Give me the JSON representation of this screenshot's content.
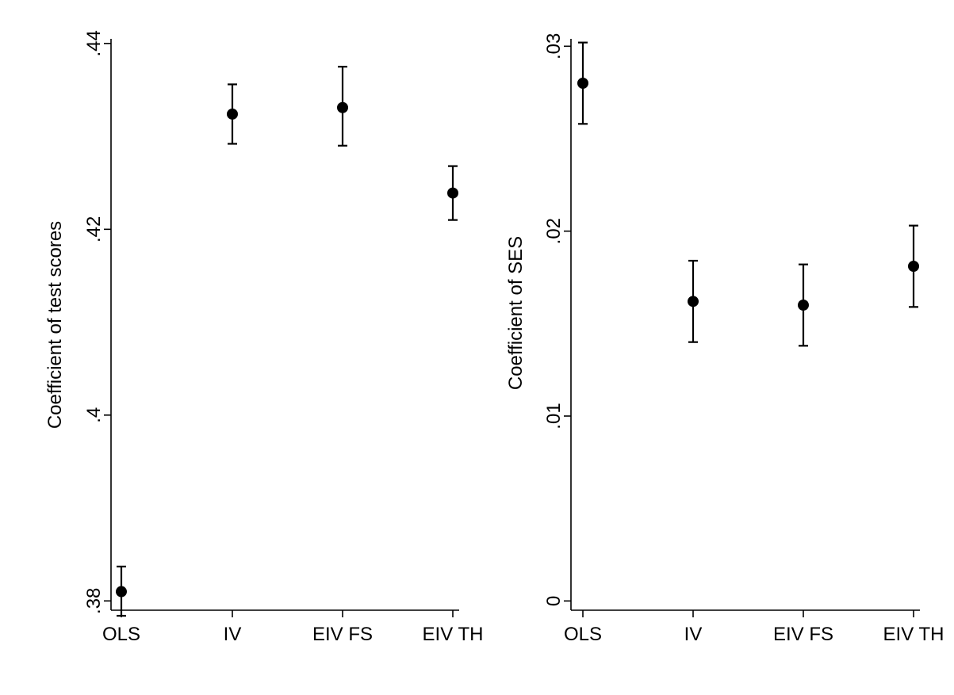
{
  "chart_data": [
    {
      "type": "scatter",
      "title": "",
      "xlabel": "",
      "ylabel": "Coefficient of test scores",
      "categories": [
        "OLS",
        "IV",
        "EIV FS",
        "EIV TH"
      ],
      "y_ticks": [
        ".38",
        ".4",
        ".42",
        ".44"
      ],
      "y_tick_values": [
        0.38,
        0.4,
        0.42,
        0.44
      ],
      "ylim": [
        0.379,
        0.4405
      ],
      "values": [
        0.381,
        0.4324,
        0.4331,
        0.4239
      ],
      "ci_low": [
        0.3784,
        0.4292,
        0.429,
        0.421
      ],
      "ci_high": [
        0.3837,
        0.4356,
        0.4375,
        0.4268
      ],
      "grid": false,
      "legend": "none",
      "marker_color": "#000000"
    },
    {
      "type": "scatter",
      "title": "",
      "xlabel": "",
      "ylabel": "Coefficient of SES",
      "categories": [
        "OLS",
        "IV",
        "EIV FS",
        "EIV TH"
      ],
      "y_ticks": [
        "0",
        ".01",
        ".02",
        ".03"
      ],
      "y_tick_values": [
        0,
        0.01,
        0.02,
        0.03
      ],
      "ylim": [
        -0.0005,
        0.0304
      ],
      "values": [
        0.028,
        0.0162,
        0.016,
        0.0181
      ],
      "ci_low": [
        0.0258,
        0.014,
        0.0138,
        0.0159
      ],
      "ci_high": [
        0.0302,
        0.0184,
        0.0182,
        0.0203
      ],
      "grid": false,
      "legend": "none",
      "marker_color": "#000000"
    }
  ]
}
